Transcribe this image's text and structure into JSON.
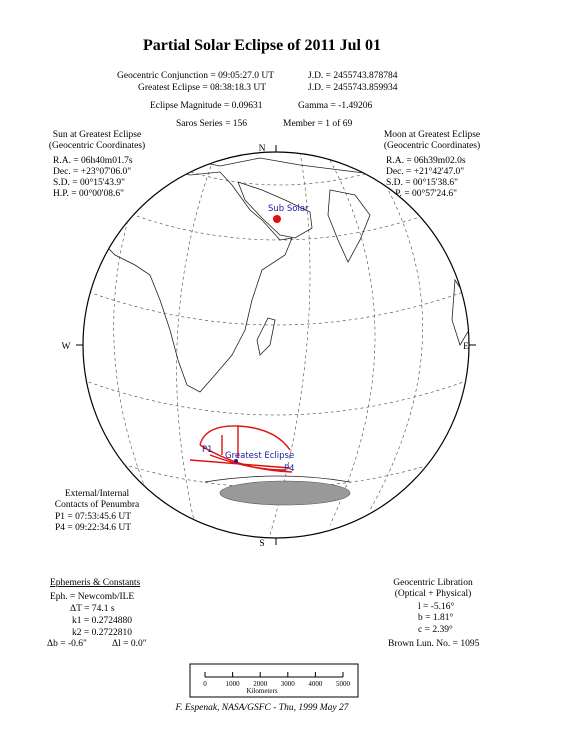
{
  "title": "Partial Solar Eclipse of 2011 Jul 01",
  "header": {
    "conjunction": "Geocentric Conjunction =  09:05:27.0 UT",
    "conjunction_jd": "J.D. =  2455743.878784",
    "greatest": "Greatest Eclipse =  08:38:18.3 UT",
    "greatest_jd": "J.D. =  2455743.859934",
    "magnitude": "Eclipse Magnitude =  0.09631",
    "gamma": "Gamma =  -1.49206",
    "saros": "Saros Series = 156",
    "member": "Member =   1 of 69"
  },
  "sun": {
    "title": "Sun at Greatest Eclipse",
    "subtitle": "(Geocentric Coordinates)",
    "lines": [
      "R.A. =  06h40m01.7s",
      "Dec. =  +23°07'06.0\"",
      "S.D. =  00°15'43.9\"",
      "H.P. =  00°00'08.6\""
    ]
  },
  "moon": {
    "title": "Moon at Greatest Eclipse",
    "subtitle": "(Geocentric Coordinates)",
    "lines": [
      "R.A. =  06h39m02.0s",
      "Dec. =  +21°42'47.0\"",
      "S.D. =  00°15'38.6\"",
      "H.P. =  00°57'24.6\""
    ]
  },
  "compass": {
    "north": "N",
    "south": "S",
    "west": "W",
    "east": "E"
  },
  "map_labels": {
    "sub_solar": "Sub Solar",
    "greatest": "Greatest Eclipse",
    "p1": "P1",
    "p4": "P4"
  },
  "contacts": {
    "title": "External/Internal",
    "subtitle": "Contacts of Penumbra",
    "lines": [
      "P1 =  07:53:45.6 UT",
      "P4 =  09:22:34.6 UT"
    ]
  },
  "ephemeris": {
    "title": "Ephemeris & Constants",
    "eph": "Eph. = Newcomb/ILE",
    "dt": "ΔT =     74.1 s",
    "k1": "k1 =  0.2724880",
    "k2": "k2 =  0.2722810",
    "db": "Δb =  -0.6\"",
    "dl": "Δl =    0.0\""
  },
  "libration": {
    "title": "Geocentric Libration",
    "subtitle": "(Optical + Physical)",
    "l": "l =   -5.16°",
    "b": "b =    1.81°",
    "c": "c =    2.39°",
    "brown": "Brown Lun. No. = 1095"
  },
  "scale": {
    "ticks": [
      "0",
      "1000",
      "2000",
      "3000",
      "4000",
      "5000"
    ],
    "unit": "Kilometers"
  },
  "footer": "F. Espenak, NASA/GSFC - Thu, 1999 May 27"
}
